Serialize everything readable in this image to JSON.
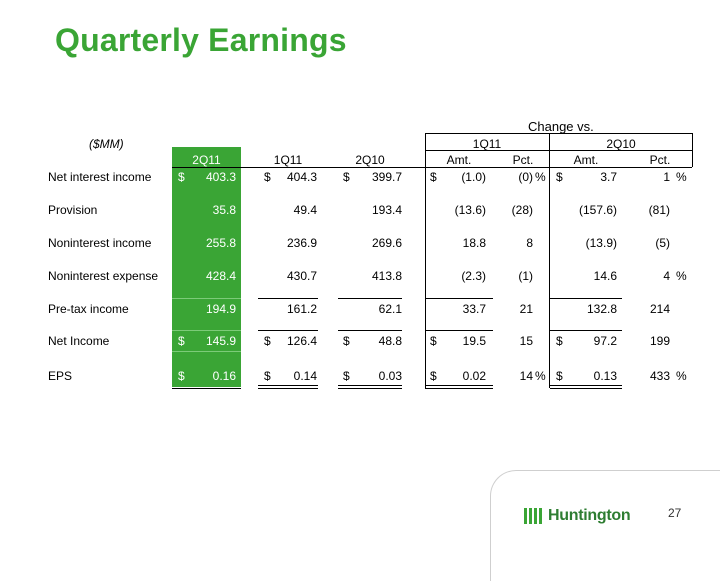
{
  "title": "Quarterly Earnings",
  "header": {
    "change_vs": "Change vs.",
    "mm": "($MM)",
    "g1q11": "1Q11",
    "g2q10": "2Q10",
    "cols": [
      "2Q11",
      "1Q11",
      "2Q10",
      "Amt.",
      "Pct.",
      "Amt.",
      "Pct."
    ]
  },
  "rows": [
    {
      "label": "Net interest income",
      "c2q11": "403.3",
      "c1q11": "404.3",
      "c2q10": "399.7",
      "a1": "(1.0)",
      "p1": "(0)",
      "a2": "3.7",
      "p2": "1"
    },
    {
      "label": "Provision",
      "c2q11": "35.8",
      "c1q11": "49.4",
      "c2q10": "193.4",
      "a1": "(13.6)",
      "p1": "(28)",
      "a2": "(157.6)",
      "p2": "(81)"
    },
    {
      "label": "Noninterest income",
      "c2q11": "255.8",
      "c1q11": "236.9",
      "c2q10": "269.6",
      "a1": "18.8",
      "p1": "8",
      "a2": "(13.9)",
      "p2": "(5)"
    },
    {
      "label": "Noninterest expense",
      "c2q11": "428.4",
      "c1q11": "430.7",
      "c2q10": "413.8",
      "a1": "(2.3)",
      "p1": "(1)",
      "a2": "14.6",
      "p2": "4"
    },
    {
      "label": "Pre-tax income",
      "c2q11": "194.9",
      "c1q11": "161.2",
      "c2q10": "62.1",
      "a1": "33.7",
      "p1": "21",
      "a2": "132.8",
      "p2": "214"
    },
    {
      "label": "Net Income",
      "c2q11": "145.9",
      "c1q11": "126.4",
      "c2q10": "48.8",
      "a1": "19.5",
      "p1": "15",
      "a2": "97.2",
      "p2": "199"
    },
    {
      "label": "EPS",
      "c2q11": "0.16",
      "c1q11": "0.14",
      "c2q10": "0.03",
      "a1": "0.02",
      "p1": "14",
      "a2": "0.13",
      "p2": "433"
    }
  ],
  "symbols": {
    "dollar": "$",
    "percent": "%"
  },
  "footer": {
    "logo_text": "Huntington",
    "page_number": "27"
  }
}
